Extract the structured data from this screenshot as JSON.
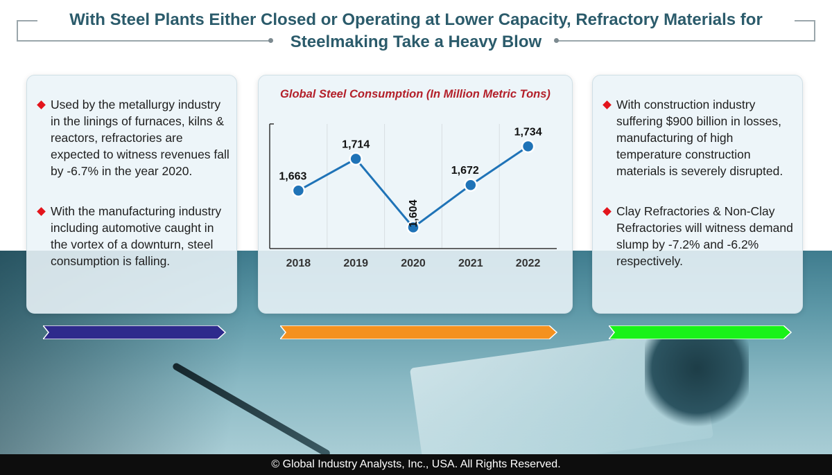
{
  "title": {
    "line1": "With Steel Plants Either Closed or Operating at Lower Capacity, Refractory Materials for",
    "line2": "Steelmaking Take a Heavy Blow"
  },
  "left_panel": {
    "bullets": [
      "Used by the metallurgy industry in the linings of furnaces, kilns & reactors, refractories are expected to witness revenues fall by -6.7% in the year 2020.",
      "With the manufacturing industry including automotive caught in the vortex of a downturn, steel consumption is falling."
    ]
  },
  "right_panel": {
    "bullets": [
      "With construction industry suffering $900 billion in losses, manufacturing of high temperature construction materials is severely disrupted.",
      "Clay Refractories & Non-Clay Refractories will witness demand slump by -7.2% and -6.2% respectively."
    ]
  },
  "arrows": {
    "left_color": "#2e2a8c",
    "center_color": "#f4911f",
    "right_color": "#19f219"
  },
  "chart_data": {
    "type": "line",
    "title": "Global Steel Consumption (In Million Metric Tons)",
    "categories": [
      "2018",
      "2019",
      "2020",
      "2021",
      "2022"
    ],
    "values": [
      1663,
      1714,
      1604,
      1672,
      1734
    ],
    "labels": [
      "1,663",
      "1,714",
      "1,604",
      "1,672",
      "1,734"
    ],
    "ylim": [
      1570,
      1770
    ],
    "xlabel": "",
    "ylabel": "",
    "grid": "vertical",
    "line_color": "#1f73b7",
    "marker_color": "#1f73b7"
  },
  "footer": {
    "text": "© Global Industry Analysts, Inc., USA. All Rights Reserved."
  }
}
